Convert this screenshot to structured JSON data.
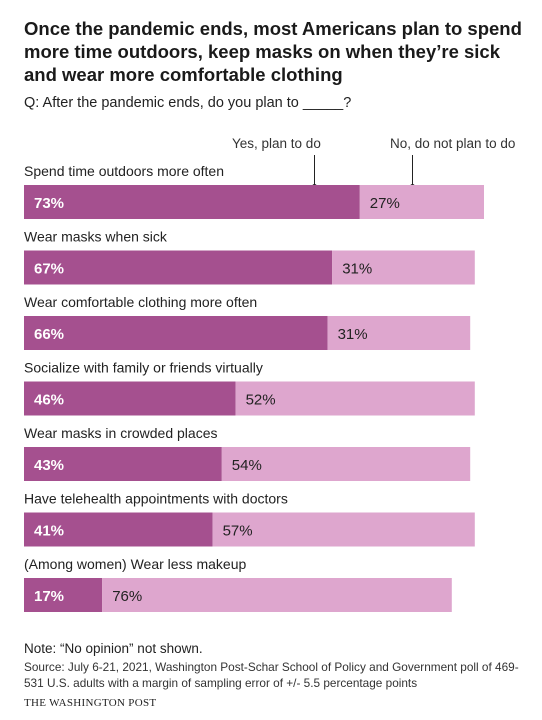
{
  "header": {
    "title": "Once the pandemic ends, most Americans plan to spend more time outdoors, keep masks on when they’re sick and wear more comfortable clothing",
    "question": "Q: After the pandemic ends, do you plan to _____?"
  },
  "colors": {
    "yes": "#a5508f",
    "no": "#dea6ce",
    "yes_text": "#ffffff",
    "no_text": "#222222"
  },
  "chart_data": {
    "type": "bar",
    "orientation": "horizontal",
    "stacked": true,
    "xlim": [
      0,
      100
    ],
    "categories": [
      "Spend time outdoors more often",
      "Wear masks when sick",
      "Wear comfortable clothing more often",
      "Socialize with family or friends virtually",
      "Wear masks in crowded places",
      "Have telehealth appointments with doctors",
      "(Among women) Wear less makeup"
    ],
    "series": [
      {
        "name": "Yes, plan to do",
        "values": [
          73,
          67,
          66,
          46,
          43,
          41,
          17
        ]
      },
      {
        "name": "No, do not plan to do",
        "values": [
          27,
          31,
          31,
          52,
          54,
          57,
          76
        ]
      }
    ],
    "labels": {
      "yes": [
        "73%",
        "67%",
        "66%",
        "46%",
        "43%",
        "41%",
        "17%"
      ],
      "no": [
        "27%",
        "31%",
        "31%",
        "52%",
        "54%",
        "57%",
        "76%"
      ]
    },
    "legend": "top"
  },
  "footer": {
    "note": "Note: “No opinion” not shown.",
    "source": "Source: July 6-21, 2021, Washington Post-Schar School of Policy and Government poll of 469-531 U.S. adults with a margin of sampling error of +/- 5.5 percentage points",
    "brand": "The Washington Post"
  }
}
